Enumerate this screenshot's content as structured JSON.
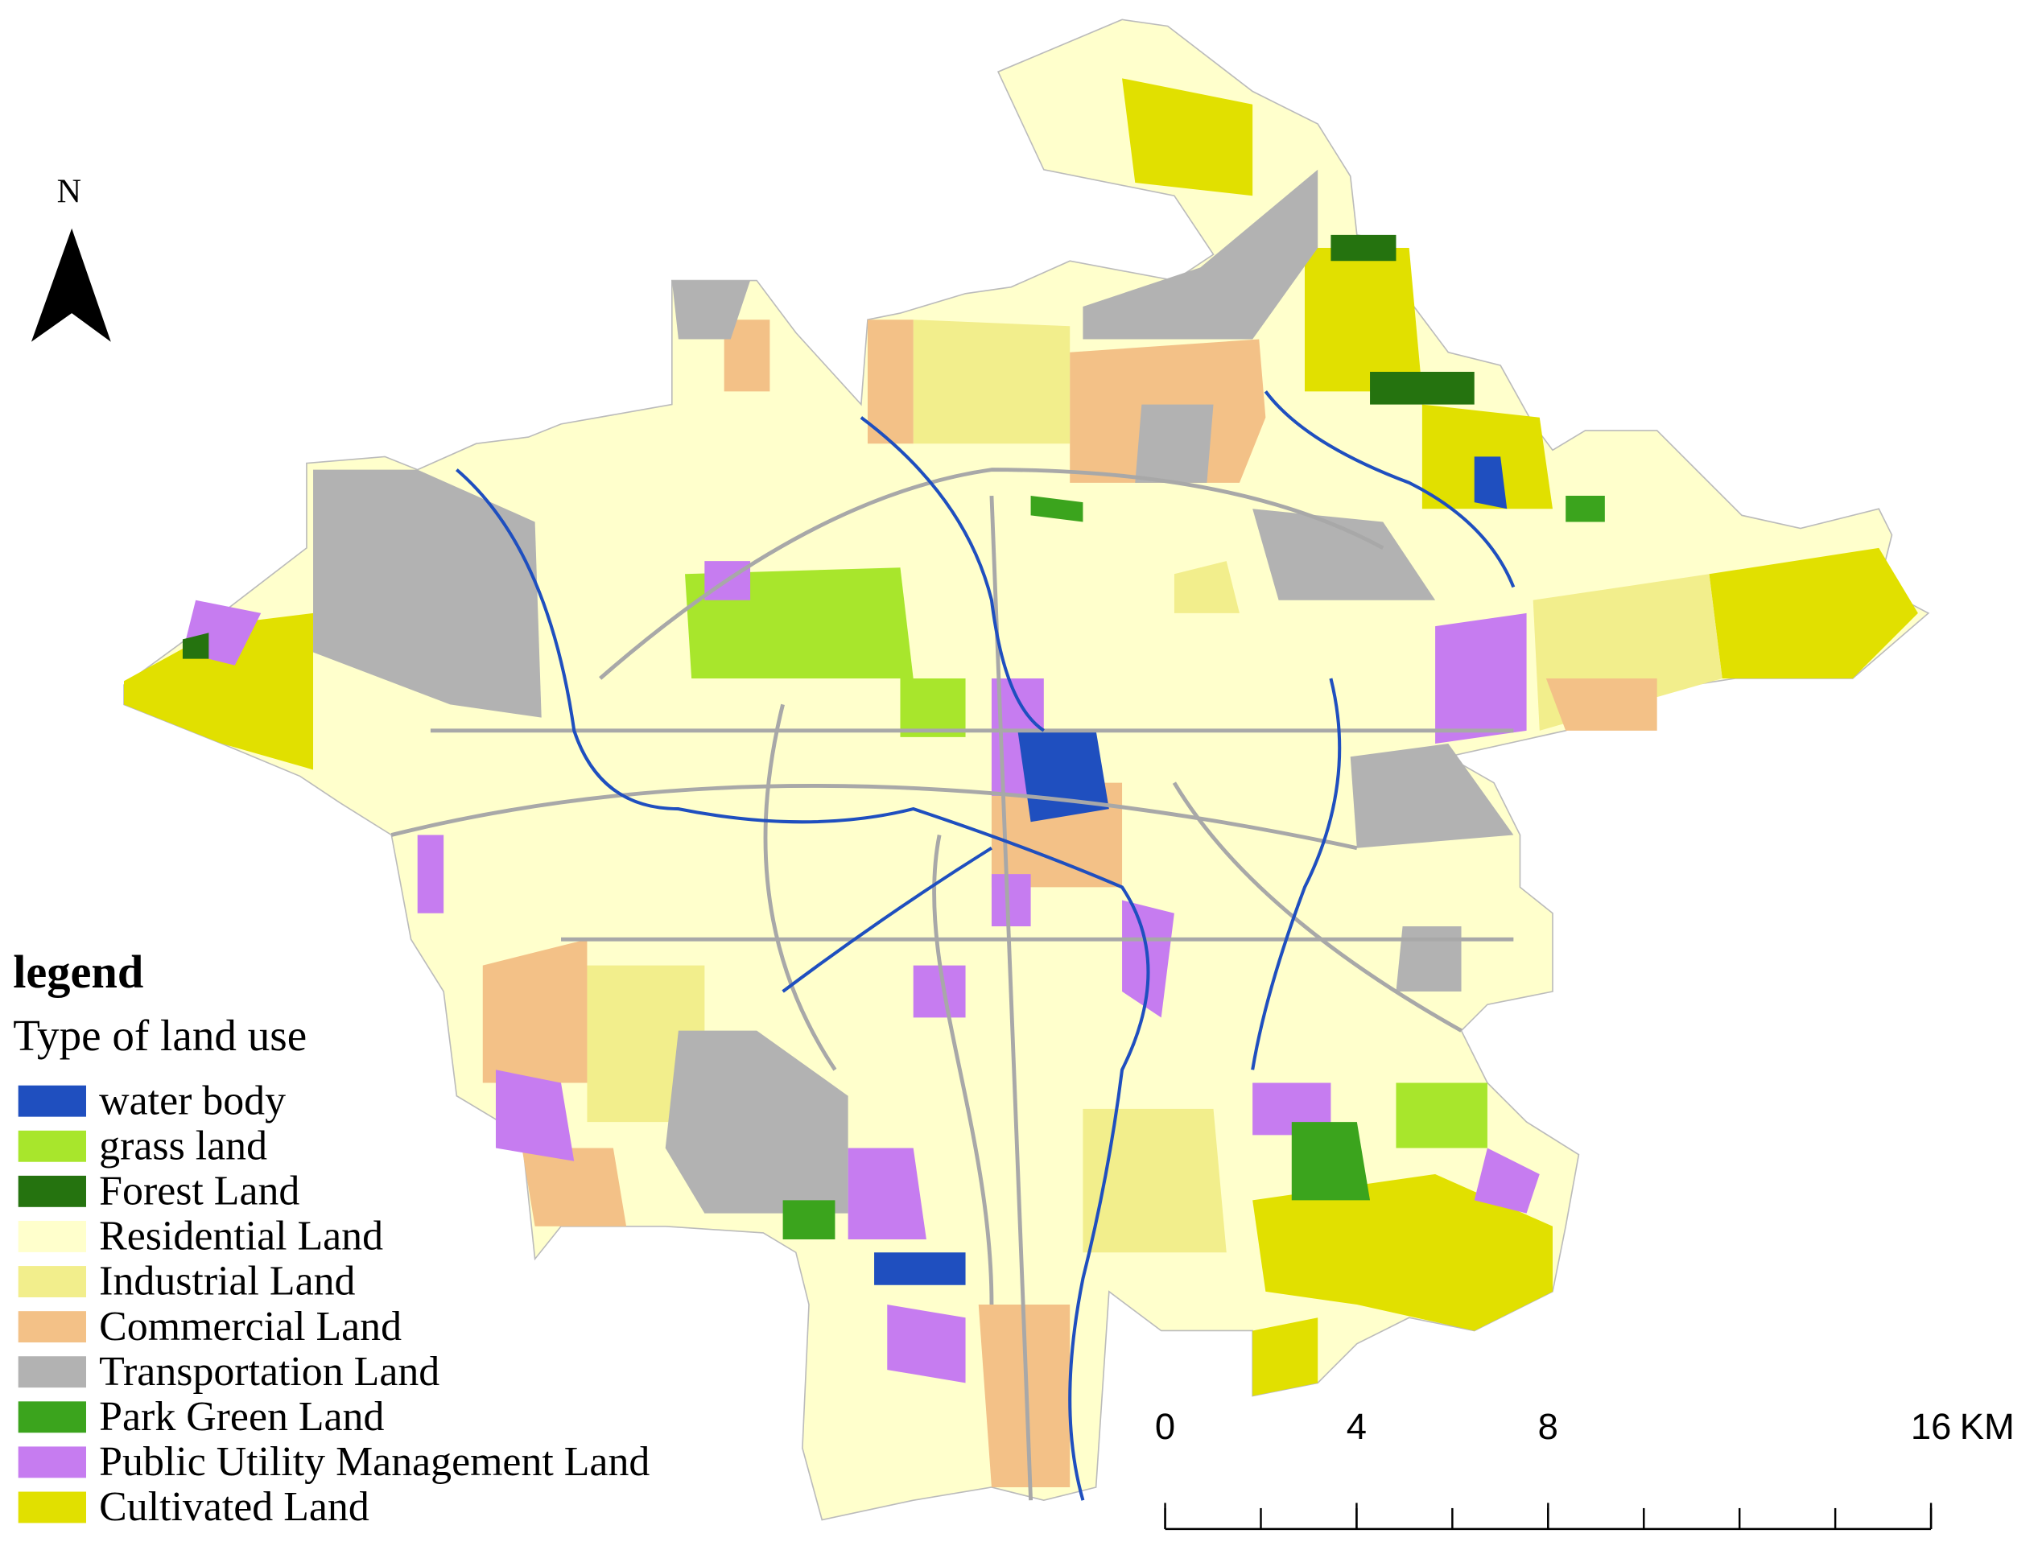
{
  "north_arrow": {
    "label": "N"
  },
  "legend": {
    "title": "legend",
    "subtitle": "Type of land use",
    "items": [
      {
        "label": "water body",
        "color": "#1f4fbf"
      },
      {
        "label": "grass land",
        "color": "#a8e62c"
      },
      {
        "label": "Forest Land",
        "color": "#25730f"
      },
      {
        "label": "Residential Land",
        "color": "#ffffcc"
      },
      {
        "label": "Industrial Land",
        "color": "#f2ee8c"
      },
      {
        "label": "Commercial Land",
        "color": "#f3c187"
      },
      {
        "label": "Transportation Land",
        "color": "#b2b2b2"
      },
      {
        "label": "Park Green Land",
        "color": "#3ba41d"
      },
      {
        "label": "Public Utility Management Land",
        "color": "#c67cf0"
      },
      {
        "label": "Cultivated Land",
        "color": "#e1e000"
      }
    ]
  },
  "scale_bar": {
    "ticks": [
      0,
      4,
      8,
      16
    ],
    "unit": "KM"
  }
}
